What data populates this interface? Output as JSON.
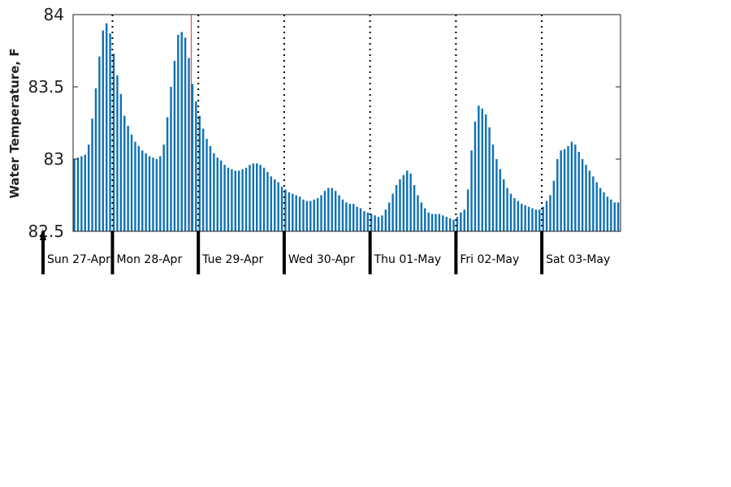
{
  "chart_data": {
    "type": "bar",
    "ylabel": "Water Temperature, F",
    "ylim": [
      82.5,
      84
    ],
    "yticks": [
      "82.5",
      "83",
      "83.5",
      "84"
    ],
    "grid": false,
    "bar_color": "#0f72b4",
    "divider_color": "#000000",
    "marker_color": "#e03030",
    "day_labels": [
      "Sun 27-Apr",
      "Mon 28-Apr",
      "Tue 29-Apr",
      "Wed 30-Apr",
      "Thu 01-May",
      "Fri 02-May",
      "Sat 03-May"
    ],
    "hourly_values": [
      83.0,
      83.01,
      83.02,
      83.03,
      83.1,
      83.28,
      83.49,
      83.71,
      83.89,
      83.94,
      83.87,
      83.73,
      83.58,
      83.45,
      83.3,
      83.23,
      83.17,
      83.12,
      83.09,
      83.06,
      83.04,
      83.02,
      83.01,
      83.0,
      83.02,
      83.1,
      83.29,
      83.5,
      83.68,
      83.86,
      83.88,
      83.84,
      83.7,
      83.52,
      83.4,
      83.3,
      83.21,
      83.14,
      83.09,
      83.04,
      83.01,
      82.99,
      82.96,
      82.94,
      82.93,
      82.92,
      82.92,
      82.93,
      82.94,
      82.96,
      82.97,
      82.97,
      82.96,
      82.94,
      82.91,
      82.88,
      82.86,
      82.84,
      82.81,
      82.79,
      82.77,
      82.76,
      82.75,
      82.74,
      82.72,
      82.71,
      82.71,
      82.72,
      82.73,
      82.75,
      82.78,
      82.8,
      82.8,
      82.78,
      82.75,
      82.72,
      82.7,
      82.69,
      82.69,
      82.67,
      82.66,
      82.64,
      82.63,
      82.62,
      82.61,
      82.6,
      82.61,
      82.65,
      82.7,
      82.76,
      82.82,
      82.86,
      82.89,
      82.92,
      82.9,
      82.82,
      82.75,
      82.7,
      82.66,
      82.63,
      82.62,
      82.62,
      82.62,
      82.61,
      82.6,
      82.59,
      82.58,
      82.6,
      82.63,
      82.65,
      82.79,
      83.06,
      83.26,
      83.37,
      83.35,
      83.31,
      83.22,
      83.1,
      83.0,
      82.93,
      82.86,
      82.8,
      82.76,
      82.73,
      82.71,
      82.69,
      82.68,
      82.67,
      82.66,
      82.65,
      82.65,
      82.67,
      82.71,
      82.75,
      82.85,
      83.0,
      83.06,
      83.07,
      83.09,
      83.12,
      83.1,
      83.05,
      83.0,
      82.96,
      82.92,
      82.88,
      82.84,
      82.8,
      82.77,
      82.74,
      82.72,
      82.7,
      82.7
    ]
  }
}
